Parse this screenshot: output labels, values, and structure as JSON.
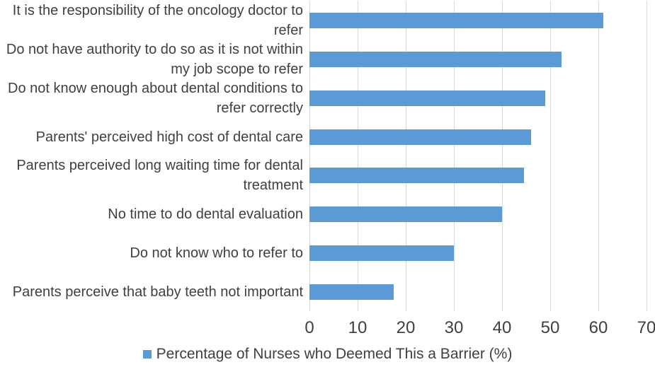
{
  "figure": {
    "legend_label": "Percentage of Nurses who Deemed This a Barrier (%)"
  },
  "chart_data": {
    "type": "bar",
    "orientation": "horizontal",
    "title": "",
    "xlabel": "",
    "ylabel": "",
    "categories": [
      "It is the responsibility of the oncology doctor to\nrefer",
      "Do not have authority to do so as it is not within\nmy job scope to refer",
      "Do not know enough about dental conditions to\nrefer correctly",
      "Parents' perceived high cost of dental care",
      "Parents perceived long waiting time for dental\ntreatment",
      "No time to do dental evaluation",
      "Do not know who to refer to",
      "Parents perceive that baby teeth not important"
    ],
    "series": [
      {
        "name": "Percentage of Nurses who Deemed This a Barrier (%)",
        "values": [
          61,
          52.4,
          49,
          46,
          44.5,
          40,
          30,
          17.5
        ]
      }
    ],
    "xlim": [
      0,
      70
    ],
    "x_ticks": [
      0,
      10,
      20,
      30,
      40,
      50,
      60,
      70
    ],
    "grid": true,
    "legend_position": "bottom",
    "bar_color": "#5b9bd5",
    "gridline_color": "#d9d9d9",
    "text_color": "#404040"
  }
}
